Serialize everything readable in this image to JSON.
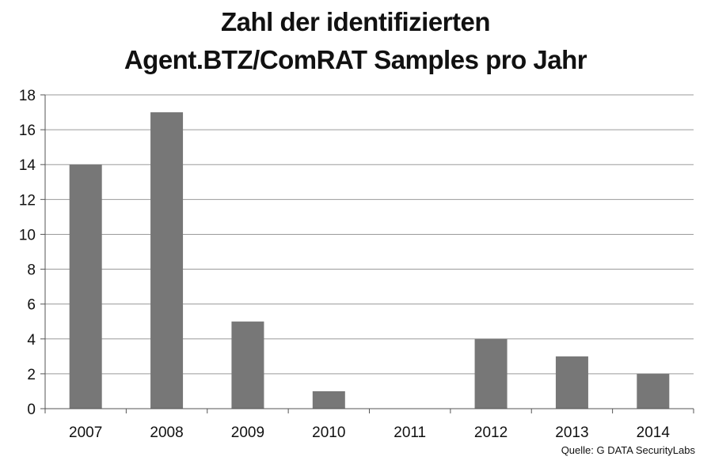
{
  "chart_data": {
    "type": "bar",
    "title": [
      "Zahl der identifizierten",
      "Agent.BTZ/ComRAT Samples pro Jahr"
    ],
    "categories": [
      "2007",
      "2008",
      "2009",
      "2010",
      "2011",
      "2012",
      "2013",
      "2014"
    ],
    "values": [
      14,
      17,
      5,
      1,
      0,
      4,
      3,
      2
    ],
    "ylim": [
      0,
      18
    ],
    "yticks": [
      "0",
      "2",
      "4",
      "6",
      "8",
      "10",
      "12",
      "14",
      "16",
      "18"
    ],
    "grid": true,
    "bar_color": "#777777",
    "grid_color": "#9a9a9a",
    "source": "Quelle: G DATA SecurityLabs"
  }
}
